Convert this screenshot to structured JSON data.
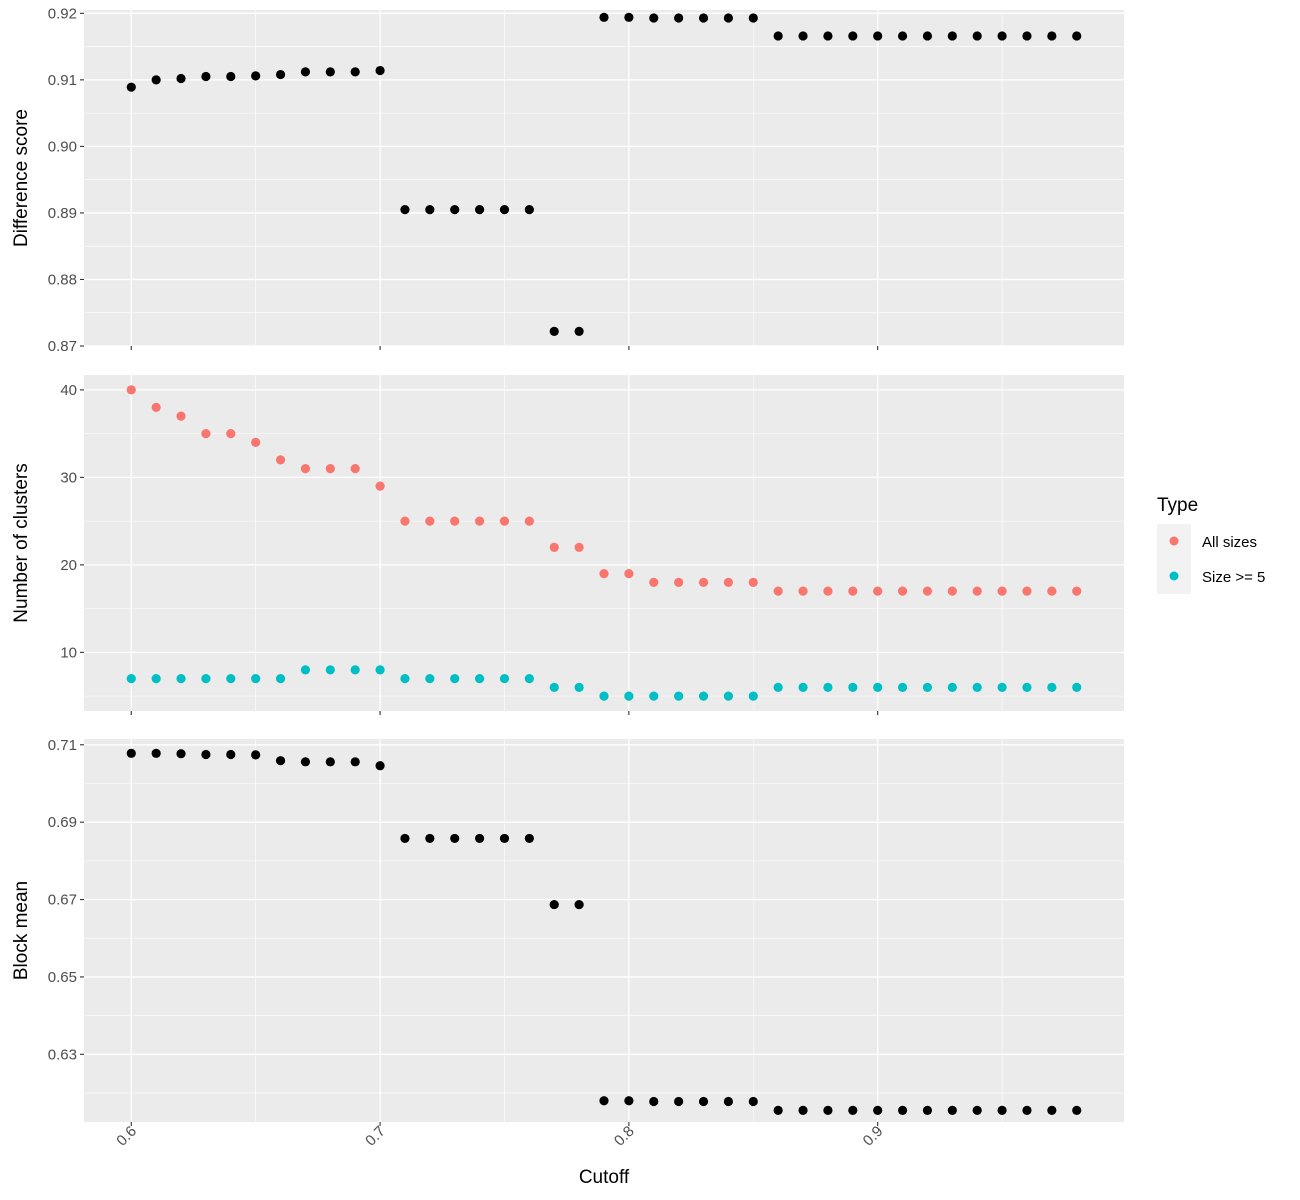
{
  "chart_data": [
    {
      "type": "scatter",
      "title": "",
      "xlabel": "",
      "ylabel": "Difference score",
      "xlim": [
        0.581,
        0.999
      ],
      "ylim": [
        0.87,
        0.9205
      ],
      "yticks": [
        0.87,
        0.88,
        0.89,
        0.9,
        0.91,
        0.92
      ],
      "ytick_labels": [
        "0.87",
        "0.88",
        "0.89",
        "0.90",
        "0.91",
        "0.92"
      ],
      "grid": true,
      "series": [
        {
          "color": "#000000",
          "points": [
            [
              0.6,
              0.9089
            ],
            [
              0.61,
              0.91
            ],
            [
              0.62,
              0.9102
            ],
            [
              0.63,
              0.9105
            ],
            [
              0.64,
              0.9105
            ],
            [
              0.65,
              0.9106
            ],
            [
              0.66,
              0.9108
            ],
            [
              0.67,
              0.9112
            ],
            [
              0.68,
              0.9112
            ],
            [
              0.69,
              0.9112
            ],
            [
              0.7,
              0.9114
            ],
            [
              0.71,
              0.8905
            ],
            [
              0.72,
              0.8905
            ],
            [
              0.73,
              0.8905
            ],
            [
              0.74,
              0.8905
            ],
            [
              0.75,
              0.8905
            ],
            [
              0.76,
              0.8905
            ],
            [
              0.77,
              0.8722
            ],
            [
              0.78,
              0.8722
            ],
            [
              0.79,
              0.9194
            ],
            [
              0.8,
              0.9194
            ],
            [
              0.81,
              0.9193
            ],
            [
              0.82,
              0.9193
            ],
            [
              0.83,
              0.9193
            ],
            [
              0.84,
              0.9193
            ],
            [
              0.85,
              0.9193
            ],
            [
              0.86,
              0.9166
            ],
            [
              0.87,
              0.9166
            ],
            [
              0.88,
              0.9166
            ],
            [
              0.89,
              0.9166
            ],
            [
              0.9,
              0.9166
            ],
            [
              0.91,
              0.9166
            ],
            [
              0.92,
              0.9166
            ],
            [
              0.93,
              0.9166
            ],
            [
              0.94,
              0.9166
            ],
            [
              0.95,
              0.9166
            ],
            [
              0.96,
              0.9166
            ],
            [
              0.97,
              0.9166
            ],
            [
              0.98,
              0.9166
            ]
          ]
        }
      ]
    },
    {
      "type": "scatter",
      "title": "",
      "xlabel": "",
      "ylabel": "Number of clusters",
      "xlim": [
        0.581,
        0.999
      ],
      "ylim": [
        3.3,
        41.7
      ],
      "yticks": [
        10,
        20,
        30,
        40
      ],
      "ytick_labels": [
        "10",
        "20",
        "30",
        "40"
      ],
      "grid": true,
      "series": [
        {
          "name": "All sizes",
          "color": "#F8766D",
          "points": [
            [
              0.6,
              40
            ],
            [
              0.61,
              38
            ],
            [
              0.62,
              37
            ],
            [
              0.63,
              35
            ],
            [
              0.64,
              35
            ],
            [
              0.65,
              34
            ],
            [
              0.66,
              32
            ],
            [
              0.67,
              31
            ],
            [
              0.68,
              31
            ],
            [
              0.69,
              31
            ],
            [
              0.7,
              29
            ],
            [
              0.71,
              25
            ],
            [
              0.72,
              25
            ],
            [
              0.73,
              25
            ],
            [
              0.74,
              25
            ],
            [
              0.75,
              25
            ],
            [
              0.76,
              25
            ],
            [
              0.77,
              22
            ],
            [
              0.78,
              22
            ],
            [
              0.79,
              19
            ],
            [
              0.8,
              19
            ],
            [
              0.81,
              18
            ],
            [
              0.82,
              18
            ],
            [
              0.83,
              18
            ],
            [
              0.84,
              18
            ],
            [
              0.85,
              18
            ],
            [
              0.86,
              17
            ],
            [
              0.87,
              17
            ],
            [
              0.88,
              17
            ],
            [
              0.89,
              17
            ],
            [
              0.9,
              17
            ],
            [
              0.91,
              17
            ],
            [
              0.92,
              17
            ],
            [
              0.93,
              17
            ],
            [
              0.94,
              17
            ],
            [
              0.95,
              17
            ],
            [
              0.96,
              17
            ],
            [
              0.97,
              17
            ],
            [
              0.98,
              17
            ]
          ]
        },
        {
          "name": "Size >= 5",
          "color": "#00BFC4",
          "points": [
            [
              0.6,
              7
            ],
            [
              0.61,
              7
            ],
            [
              0.62,
              7
            ],
            [
              0.63,
              7
            ],
            [
              0.64,
              7
            ],
            [
              0.65,
              7
            ],
            [
              0.66,
              7
            ],
            [
              0.67,
              8
            ],
            [
              0.68,
              8
            ],
            [
              0.69,
              8
            ],
            [
              0.7,
              8
            ],
            [
              0.71,
              7
            ],
            [
              0.72,
              7
            ],
            [
              0.73,
              7
            ],
            [
              0.74,
              7
            ],
            [
              0.75,
              7
            ],
            [
              0.76,
              7
            ],
            [
              0.77,
              6
            ],
            [
              0.78,
              6
            ],
            [
              0.79,
              5
            ],
            [
              0.8,
              5
            ],
            [
              0.81,
              5
            ],
            [
              0.82,
              5
            ],
            [
              0.83,
              5
            ],
            [
              0.84,
              5
            ],
            [
              0.85,
              5
            ],
            [
              0.86,
              6
            ],
            [
              0.87,
              6
            ],
            [
              0.88,
              6
            ],
            [
              0.89,
              6
            ],
            [
              0.9,
              6
            ],
            [
              0.91,
              6
            ],
            [
              0.92,
              6
            ],
            [
              0.93,
              6
            ],
            [
              0.94,
              6
            ],
            [
              0.95,
              6
            ],
            [
              0.96,
              6
            ],
            [
              0.97,
              6
            ],
            [
              0.98,
              6
            ]
          ]
        }
      ]
    },
    {
      "type": "scatter",
      "title": "",
      "xlabel": "Cutoff",
      "ylabel": "Block mean",
      "xlim": [
        0.581,
        0.999
      ],
      "ylim": [
        0.6125,
        0.7115
      ],
      "yticks": [
        0.63,
        0.65,
        0.67,
        0.69,
        0.71
      ],
      "ytick_labels": [
        "0.63",
        "0.65",
        "0.67",
        "0.69",
        "0.71"
      ],
      "xticks": [
        0.6,
        0.7,
        0.8,
        0.9
      ],
      "xtick_labels": [
        "0.6",
        "0.7",
        "0.8",
        "0.9"
      ],
      "grid": true,
      "series": [
        {
          "color": "#000000",
          "points": [
            [
              0.6,
              0.7078
            ],
            [
              0.61,
              0.7078
            ],
            [
              0.62,
              0.7077
            ],
            [
              0.63,
              0.7075
            ],
            [
              0.64,
              0.7075
            ],
            [
              0.65,
              0.7074
            ],
            [
              0.66,
              0.7059
            ],
            [
              0.67,
              0.7056
            ],
            [
              0.68,
              0.7056
            ],
            [
              0.69,
              0.7056
            ],
            [
              0.7,
              0.7046
            ],
            [
              0.71,
              0.6858
            ],
            [
              0.72,
              0.6858
            ],
            [
              0.73,
              0.6858
            ],
            [
              0.74,
              0.6858
            ],
            [
              0.75,
              0.6858
            ],
            [
              0.76,
              0.6858
            ],
            [
              0.77,
              0.6687
            ],
            [
              0.78,
              0.6687
            ],
            [
              0.79,
              0.618
            ],
            [
              0.8,
              0.618
            ],
            [
              0.81,
              0.6178
            ],
            [
              0.82,
              0.6178
            ],
            [
              0.83,
              0.6178
            ],
            [
              0.84,
              0.6178
            ],
            [
              0.85,
              0.6178
            ],
            [
              0.86,
              0.6155
            ],
            [
              0.87,
              0.6155
            ],
            [
              0.88,
              0.6155
            ],
            [
              0.89,
              0.6155
            ],
            [
              0.9,
              0.6155
            ],
            [
              0.91,
              0.6155
            ],
            [
              0.92,
              0.6155
            ],
            [
              0.93,
              0.6155
            ],
            [
              0.94,
              0.6155
            ],
            [
              0.95,
              0.6155
            ],
            [
              0.96,
              0.6155
            ],
            [
              0.97,
              0.6155
            ],
            [
              0.98,
              0.6155
            ]
          ]
        }
      ]
    }
  ],
  "legend": {
    "title": "Type",
    "placement": "right",
    "items": [
      {
        "label": "All sizes",
        "color": "#F8766D"
      },
      {
        "label": "Size >= 5",
        "color": "#00BFC4"
      }
    ]
  },
  "theme": {
    "panel_background": "#EBEBEB",
    "grid_color": "#FFFFFF"
  }
}
